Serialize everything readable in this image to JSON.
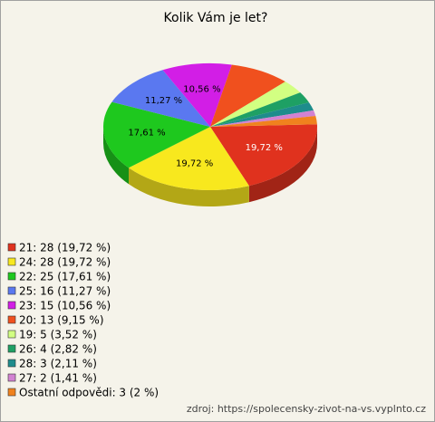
{
  "chart_data": {
    "type": "pie3d",
    "title": "Kolik Vám je let?",
    "categories": [
      "21: 28 (19,72 %)",
      "24: 28 (19,72 %)",
      "22: 25 (17,61 %)",
      "25: 16 (11,27 %)",
      "23: 15 (10,56 %)",
      "20: 13 (9,15 %)",
      "19: 5 (3,52 %)",
      "26: 4 (2,82 %)",
      "28: 3 (2,11 %)",
      "27: 2 (1,41 %)",
      "Ostatní odpovědi: 3 (2 %)"
    ],
    "values": [
      28,
      28,
      25,
      16,
      15,
      13,
      5,
      4,
      3,
      2,
      3
    ],
    "value_labels": [
      "19,72 %",
      "19,72 %",
      "17,61 %",
      "11,27 %",
      "10,56 %",
      null,
      null,
      null,
      null,
      null,
      null
    ],
    "value_label_colors": [
      "#ffffff",
      "#000000",
      "#000000",
      "#000000",
      "#000000",
      "#000000",
      "#000000",
      "#000000",
      "#000000",
      "#000000",
      "#000000"
    ],
    "colors": [
      "#e0321e",
      "#f8e81e",
      "#1ec81e",
      "#5a78f0",
      "#d21ee6",
      "#f0501e",
      "#d2ff82",
      "#1ea064",
      "#1e8c8c",
      "#d282d2",
      "#f0821e"
    ],
    "source": "zdroj: https://spolecensky-zivot-na-vs.vyplnto.cz"
  }
}
